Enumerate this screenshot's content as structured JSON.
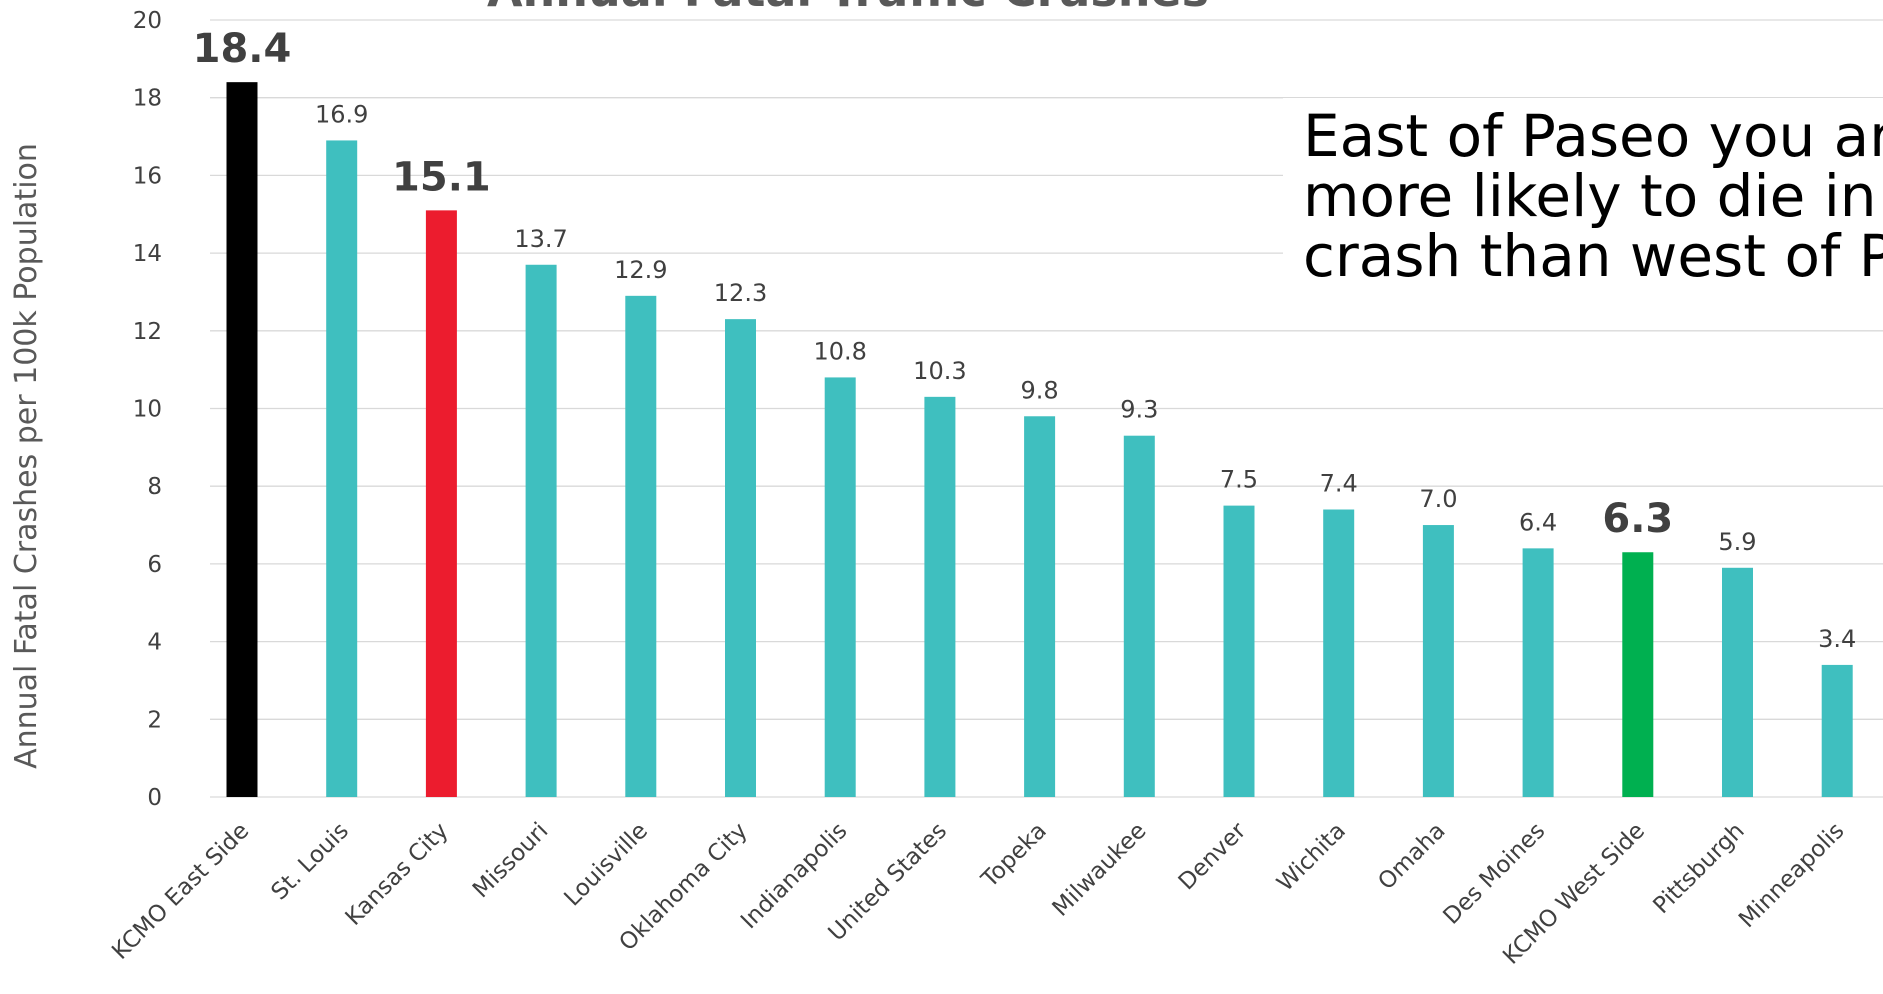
{
  "chart_data": {
    "type": "bar",
    "title": "Annual Fatal Traffic Crashes",
    "ylabel": "Annual Fatal Crashes per 100k Population",
    "xlabel": "",
    "ylim": [
      0,
      20
    ],
    "yticks": [
      "0",
      "2",
      "4",
      "6",
      "8",
      "10",
      "12",
      "14",
      "16",
      "18",
      "20"
    ],
    "grid": true,
    "categories": [
      "KCMO East Side",
      "St. Louis",
      "Kansas City",
      "Missouri",
      "Louisville",
      "Oklahoma City",
      "Indianapolis",
      "United States",
      "Topeka",
      "Milwaukee",
      "Denver",
      "Wichita",
      "Omaha",
      "Des Moines",
      "KCMO West Side",
      "Pittsburgh",
      "Minneapolis"
    ],
    "values": [
      18.4,
      16.9,
      15.1,
      13.7,
      12.9,
      12.3,
      10.8,
      10.3,
      9.8,
      9.3,
      7.5,
      7.4,
      7.0,
      6.4,
      6.3,
      5.9,
      3.4
    ],
    "data_labels": [
      "18.4",
      "16.9",
      "15.1",
      "13.7",
      "12.9",
      "12.3",
      "10.8",
      "10.3",
      "9.8",
      "9.3",
      "7.5",
      "7.4",
      "7.0",
      "6.4",
      "6.3",
      "5.9",
      "3.4"
    ],
    "highlighted": [
      "KCMO East Side",
      "Kansas City",
      "KCMO West Side"
    ],
    "colors": {
      "default": "#3fbfbf",
      "KCMO East Side": "#000000",
      "Kansas City": "#ec1c2e",
      "KCMO West Side": "#00b050"
    },
    "annotation": [
      "East of Paseo you are",
      "more likely to die in a",
      "crash than west of Paseo"
    ]
  }
}
